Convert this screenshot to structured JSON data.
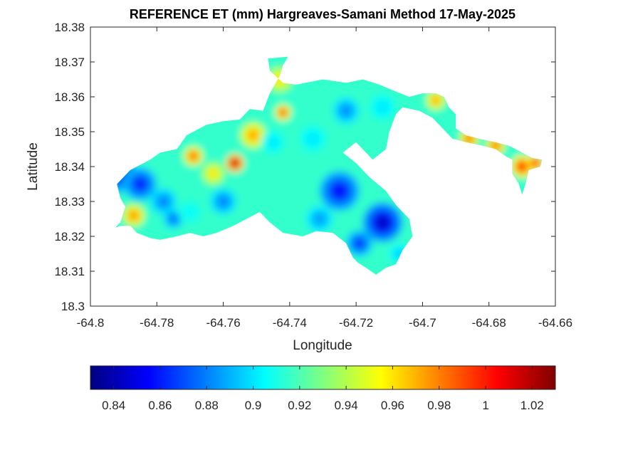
{
  "chart_data": {
    "type": "heatmap",
    "title": "REFERENCE ET (mm) Hargreaves-Samani Method  17-May-2025",
    "xlabel": "Longitude",
    "ylabel": "Latitude",
    "xlim": [
      -64.8,
      -64.66
    ],
    "ylim": [
      18.3,
      18.38
    ],
    "x_ticks": [
      -64.8,
      -64.78,
      -64.76,
      -64.74,
      -64.72,
      -64.7,
      -64.68,
      -64.66
    ],
    "x_tick_labels": [
      "-64.8",
      "-64.78",
      "-64.76",
      "-64.74",
      "-64.72",
      "-64.7",
      "-64.68",
      "-64.66"
    ],
    "y_ticks": [
      18.3,
      18.31,
      18.32,
      18.33,
      18.34,
      18.35,
      18.36,
      18.37,
      18.38
    ],
    "y_tick_labels": [
      "18.3",
      "18.31",
      "18.32",
      "18.33",
      "18.34",
      "18.35",
      "18.36",
      "18.37",
      "18.38"
    ],
    "grid": false,
    "colormap": "jet",
    "colorbar": {
      "location": "southoutside",
      "range": [
        0.83,
        1.03
      ],
      "ticks": [
        0.84,
        0.86,
        0.88,
        0.9,
        0.92,
        0.94,
        0.96,
        0.98,
        1.0,
        1.02
      ],
      "tick_labels": [
        "0.84",
        "0.86",
        "0.88",
        "0.9",
        "0.92",
        "0.94",
        "0.96",
        "0.98",
        "1",
        "1.02"
      ]
    },
    "outline": [
      [
        -64.7925,
        18.3225
      ],
      [
        -64.791,
        18.324
      ],
      [
        -64.7895,
        18.3285
      ],
      [
        -64.791,
        18.331
      ],
      [
        -64.792,
        18.335
      ],
      [
        -64.788,
        18.339
      ],
      [
        -64.782,
        18.342
      ],
      [
        -64.779,
        18.344
      ],
      [
        -64.774,
        18.345
      ],
      [
        -64.771,
        18.349
      ],
      [
        -64.765,
        18.352
      ],
      [
        -64.76,
        18.353
      ],
      [
        -64.755,
        18.3535
      ],
      [
        -64.752,
        18.3565
      ],
      [
        -64.748,
        18.356
      ],
      [
        -64.746,
        18.361
      ],
      [
        -64.743,
        18.366
      ],
      [
        -64.742,
        18.369
      ],
      [
        -64.7405,
        18.3715
      ],
      [
        -64.7465,
        18.371
      ],
      [
        -64.746,
        18.3675
      ],
      [
        -64.742,
        18.364
      ],
      [
        -64.738,
        18.3635
      ],
      [
        -64.73,
        18.365
      ],
      [
        -64.723,
        18.364
      ],
      [
        -64.718,
        18.365
      ],
      [
        -64.713,
        18.3635
      ],
      [
        -64.708,
        18.3615
      ],
      [
        -64.704,
        18.36
      ],
      [
        -64.7,
        18.361
      ],
      [
        -64.696,
        18.361
      ],
      [
        -64.6935,
        18.36
      ],
      [
        -64.692,
        18.357
      ],
      [
        -64.69,
        18.355
      ],
      [
        -64.69,
        18.351
      ],
      [
        -64.687,
        18.349
      ],
      [
        -64.683,
        18.348
      ],
      [
        -64.678,
        18.347
      ],
      [
        -64.674,
        18.346
      ],
      [
        -64.67,
        18.344
      ],
      [
        -64.667,
        18.3425
      ],
      [
        -64.664,
        18.342
      ],
      [
        -64.6645,
        18.34
      ],
      [
        -64.668,
        18.339
      ],
      [
        -64.669,
        18.335
      ],
      [
        -64.67,
        18.332
      ],
      [
        -64.671,
        18.335
      ],
      [
        -64.673,
        18.338
      ],
      [
        -64.673,
        18.342
      ],
      [
        -64.675,
        18.343
      ],
      [
        -64.678,
        18.345
      ],
      [
        -64.682,
        18.346
      ],
      [
        -64.687,
        18.347
      ],
      [
        -64.691,
        18.348
      ],
      [
        -64.694,
        18.351
      ],
      [
        -64.697,
        18.354
      ],
      [
        -64.701,
        18.356
      ],
      [
        -64.706,
        18.357
      ],
      [
        -64.708,
        18.355
      ],
      [
        -64.71,
        18.35
      ],
      [
        -64.711,
        18.345
      ],
      [
        -64.715,
        18.342
      ],
      [
        -64.72,
        18.347
      ],
      [
        -64.724,
        18.344
      ],
      [
        -64.72,
        18.341
      ],
      [
        -64.716,
        18.337
      ],
      [
        -64.711,
        18.333
      ],
      [
        -64.708,
        18.329
      ],
      [
        -64.704,
        18.325
      ],
      [
        -64.703,
        18.32
      ],
      [
        -64.706,
        18.316
      ],
      [
        -64.708,
        18.312
      ],
      [
        -64.711,
        18.311
      ],
      [
        -64.714,
        18.309
      ],
      [
        -64.717,
        18.311
      ],
      [
        -64.7195,
        18.3125
      ],
      [
        -64.721,
        18.314
      ],
      [
        -64.723,
        18.318
      ],
      [
        -64.727,
        18.321
      ],
      [
        -64.732,
        18.3215
      ],
      [
        -64.736,
        18.32
      ],
      [
        -64.742,
        18.321
      ],
      [
        -64.746,
        18.324
      ],
      [
        -64.749,
        18.327
      ],
      [
        -64.753,
        18.325
      ],
      [
        -64.757,
        18.323
      ],
      [
        -64.762,
        18.321
      ],
      [
        -64.766,
        18.32
      ],
      [
        -64.77,
        18.321
      ],
      [
        -64.774,
        18.32
      ],
      [
        -64.779,
        18.319
      ],
      [
        -64.782,
        18.3195
      ],
      [
        -64.786,
        18.321
      ],
      [
        -64.788,
        18.323
      ],
      [
        -64.791,
        18.323
      ]
    ],
    "value_field": {
      "background": 0.915,
      "features": [
        {
          "lon": -64.792,
          "lat": 18.338,
          "radius": 0.006,
          "value": 0.862
        },
        {
          "lon": -64.785,
          "lat": 18.335,
          "radius": 0.005,
          "value": 0.86
        },
        {
          "lon": -64.787,
          "lat": 18.326,
          "radius": 0.0035,
          "value": 0.978
        },
        {
          "lon": -64.778,
          "lat": 18.33,
          "radius": 0.004,
          "value": 0.88
        },
        {
          "lon": -64.775,
          "lat": 18.325,
          "radius": 0.003,
          "value": 0.875
        },
        {
          "lon": -64.769,
          "lat": 18.343,
          "radius": 0.003,
          "value": 0.988
        },
        {
          "lon": -64.763,
          "lat": 18.338,
          "radius": 0.0035,
          "value": 0.96
        },
        {
          "lon": -64.7565,
          "lat": 18.341,
          "radius": 0.0028,
          "value": 1.022
        },
        {
          "lon": -64.751,
          "lat": 18.349,
          "radius": 0.004,
          "value": 0.975
        },
        {
          "lon": -64.742,
          "lat": 18.3555,
          "radius": 0.0025,
          "value": 0.995
        },
        {
          "lon": -64.743,
          "lat": 18.365,
          "radius": 0.004,
          "value": 0.96
        },
        {
          "lon": -64.745,
          "lat": 18.347,
          "radius": 0.0035,
          "value": 0.9
        },
        {
          "lon": -64.76,
          "lat": 18.33,
          "radius": 0.004,
          "value": 0.88
        },
        {
          "lon": -64.77,
          "lat": 18.327,
          "radius": 0.0035,
          "value": 0.905
        },
        {
          "lon": -64.733,
          "lat": 18.348,
          "radius": 0.004,
          "value": 0.9
        },
        {
          "lon": -64.723,
          "lat": 18.356,
          "radius": 0.004,
          "value": 0.882
        },
        {
          "lon": -64.712,
          "lat": 18.357,
          "radius": 0.004,
          "value": 0.9
        },
        {
          "lon": -64.725,
          "lat": 18.333,
          "radius": 0.006,
          "value": 0.855
        },
        {
          "lon": -64.712,
          "lat": 18.324,
          "radius": 0.006,
          "value": 0.845
        },
        {
          "lon": -64.719,
          "lat": 18.318,
          "radius": 0.004,
          "value": 0.865
        },
        {
          "lon": -64.731,
          "lat": 18.325,
          "radius": 0.004,
          "value": 0.885
        },
        {
          "lon": -64.707,
          "lat": 18.315,
          "radius": 0.003,
          "value": 0.895
        },
        {
          "lon": -64.696,
          "lat": 18.359,
          "radius": 0.003,
          "value": 0.975
        },
        {
          "lon": -64.686,
          "lat": 18.348,
          "radius": 0.003,
          "value": 0.985
        },
        {
          "lon": -64.678,
          "lat": 18.346,
          "radius": 0.003,
          "value": 0.985
        },
        {
          "lon": -64.67,
          "lat": 18.34,
          "radius": 0.0035,
          "value": 1.0
        },
        {
          "lon": -64.666,
          "lat": 18.341,
          "radius": 0.0025,
          "value": 1.005
        }
      ]
    }
  }
}
